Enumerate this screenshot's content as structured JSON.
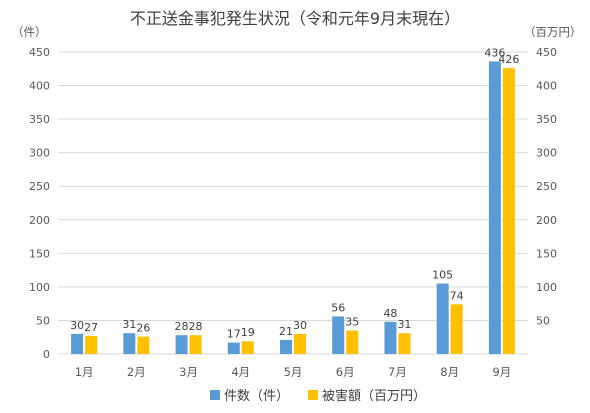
{
  "chart_data": {
    "type": "bar",
    "title": "不正送金事犯発生状況（令和元年9月末現在）",
    "left_axis_unit": "（件）",
    "right_axis_unit": "（百万円）",
    "categories": [
      "1月",
      "2月",
      "3月",
      "4月",
      "5月",
      "6月",
      "7月",
      "8月",
      "9月"
    ],
    "series": [
      {
        "name": "件数（件）",
        "axis": "left",
        "color": "#5b9bd5",
        "values": [
          30,
          31,
          28,
          17,
          21,
          56,
          48,
          105,
          436
        ]
      },
      {
        "name": "被害額（百万円）",
        "axis": "right",
        "color": "#ffc000",
        "values": [
          27,
          26,
          28,
          19,
          30,
          35,
          31,
          74,
          426
        ]
      }
    ],
    "ylim": [
      0,
      450
    ],
    "left_ticks": [
      "0",
      "50",
      "100",
      "150",
      "200",
      "250",
      "300",
      "350",
      "400",
      "450"
    ],
    "right_ticks": [
      "50",
      "100",
      "150",
      "200",
      "250",
      "300",
      "350",
      "400",
      "450"
    ],
    "grid": true,
    "legend_position": "bottom"
  }
}
